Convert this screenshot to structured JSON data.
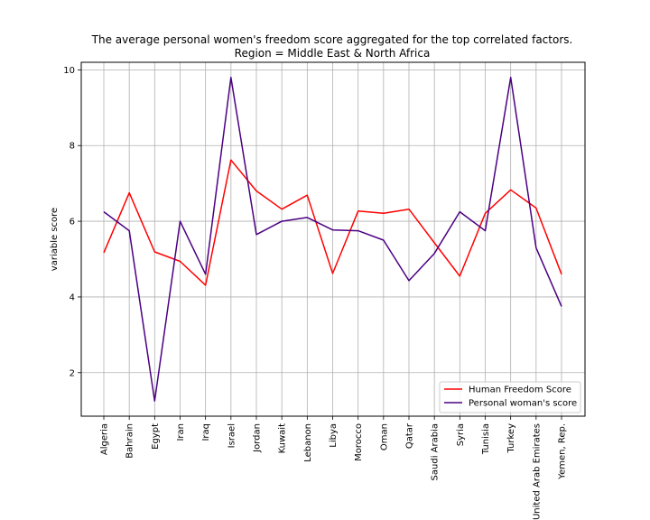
{
  "chart_data": {
    "type": "line",
    "title_line1": "The average personal women's freedom score aggregated for the top correlated factors.",
    "title_line2": "Region = Middle East & North Africa",
    "xlabel": "",
    "ylabel": "variable score",
    "ylim": [
      0.85,
      10.2
    ],
    "yticks": [
      2,
      4,
      6,
      8,
      10
    ],
    "grid": true,
    "legend_position": "lower-right",
    "categories": [
      "Algeria",
      "Bahrain",
      "Egypt",
      "Iran",
      "Iraq",
      "Israel",
      "Jordan",
      "Kuwait",
      "Lebanon",
      "Libya",
      "Morocco",
      "Oman",
      "Qatar",
      "Saudi Arabia",
      "Syria",
      "Tunisia",
      "Turkey",
      "United Arab Emirates",
      "Yemen, Rep."
    ],
    "series": [
      {
        "name": "Human Freedom Score",
        "color": "#ff0000",
        "values": [
          5.17,
          6.75,
          5.19,
          4.94,
          4.31,
          7.62,
          6.8,
          6.32,
          6.69,
          4.62,
          6.27,
          6.21,
          6.32,
          5.43,
          4.55,
          6.21,
          6.83,
          6.35,
          4.6
        ]
      },
      {
        "name": "Personal woman's score",
        "color": "#4b0082",
        "values": [
          6.25,
          5.75,
          1.25,
          6.0,
          4.6,
          9.8,
          5.65,
          6.0,
          6.1,
          5.77,
          5.75,
          5.5,
          4.43,
          5.15,
          6.25,
          5.75,
          9.8,
          5.3,
          3.75
        ]
      }
    ]
  }
}
